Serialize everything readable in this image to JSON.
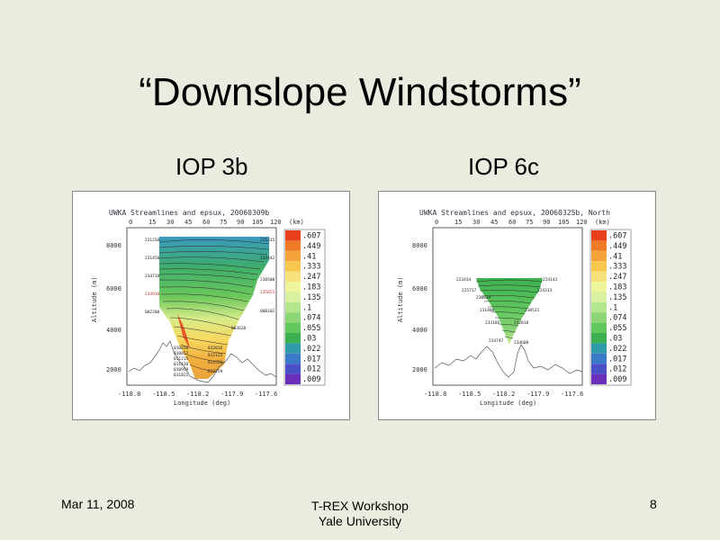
{
  "slide": {
    "title": "“Downslope Windstorms”",
    "subtitle_left": "IOP 3b",
    "subtitle_right": "IOP 6c"
  },
  "footer": {
    "date": "Mar 11, 2008",
    "line1": "T-REX Workshop",
    "line2": "Yale University",
    "page": "8"
  },
  "colorbar": {
    "labels": [
      ".607",
      ".449",
      ".41",
      ".333",
      ".247",
      ".183",
      ".135",
      ".1",
      ".074",
      ".055",
      ".03",
      ".022",
      ".017",
      ".012",
      ".009"
    ],
    "colors": [
      "#e8401c",
      "#f07a26",
      "#f5a43a",
      "#f8c84e",
      "#f5e27a",
      "#eef59a",
      "#d8f0a0",
      "#b4e68e",
      "#8cd678",
      "#62c85e",
      "#3cb050",
      "#2f9aa8",
      "#3a78c8",
      "#4a50c8",
      "#6a2fb8"
    ]
  },
  "panels": [
    {
      "title": "UWKA Streamlines and epsux, 20060309b",
      "top_ticks": [
        "0",
        "15",
        "30",
        "45",
        "60",
        "75",
        "90",
        "105",
        "120"
      ],
      "top_unit": "(km)",
      "y_ticks": [
        "8000",
        "6000",
        "4000",
        "2000"
      ],
      "y_label": "Altitude (m)",
      "x_ticks": [
        "-118.8",
        "-118.5",
        "-118.2",
        "-117.9",
        "-117.6"
      ],
      "x_label": "Longitude (deg)",
      "stations": [
        "231250",
        "231458",
        "234718",
        "234910",
        "002200",
        "225315",
        "232442",
        "230500",
        "235653",
        "000102",
        "003620",
        "010656",
        "010857",
        "011215",
        "011410",
        "012016",
        "012123",
        "010959",
        "011821",
        "012259",
        "011556"
      ]
    },
    {
      "title": "UWKA Streamlines and epsux, 20060325b, North",
      "top_ticks": [
        "0",
        "15",
        "30",
        "45",
        "60",
        "75",
        "90",
        "105",
        "120"
      ],
      "top_unit": "(km)",
      "y_ticks": [
        "8000",
        "6000",
        "4000",
        "2000"
      ],
      "y_label": "Altitude (m)",
      "x_ticks": [
        "-118.8",
        "-118.5",
        "-118.2",
        "-117.9",
        "-117.6"
      ],
      "x_label": "Longitude (deg)",
      "stations": [
        "223434",
        "224143",
        "225717",
        "224313",
        "230039",
        "231408",
        "230521",
        "233105",
        "232818",
        "234747",
        "234608"
      ]
    }
  ]
}
